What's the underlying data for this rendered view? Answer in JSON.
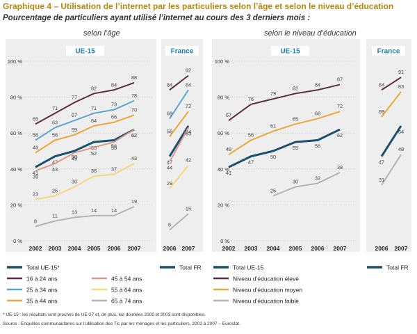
{
  "title": "Graphique 4 – Utilisation de l’internet par les particuliers selon l’âge et selon le niveau d’éducation",
  "subtitle": "Pourcentage de particuliers ayant utilisé l’internet au cours des 3 derniers mois :",
  "panel_left_label": "selon l’âge",
  "panel_right_label": "selon le niveau d’éducation",
  "footnote": "* UE-15 : les résultats sont proches de UE-27 et, de plus, les données 2002 et 2003 sont disponibles.",
  "source": "Source : Enquêtes communautaires sur l’utilisation des Tic par les ménages et les particuliers, 2002 à 2007 – Eurostat.",
  "colors": {
    "total": "#1b4f6e",
    "age_16_24": "#5b2c3b",
    "age_25_34": "#5aa6cf",
    "age_35_44": "#eba83a",
    "age_45_54": "#d89a8c",
    "age_55_64": "#f3d97a",
    "age_65_74": "#b3b3b3",
    "edu_eleve": "#5b2c3b",
    "edu_moyen": "#eba83a",
    "edu_faible": "#b3b3b3",
    "header": "#1a7fb0",
    "title": "#b8860b"
  },
  "chart_data": [
    {
      "type": "line",
      "header": "UE-15",
      "x": [
        "2002",
        "2003",
        "2004",
        "2005",
        "2006",
        "2007"
      ],
      "ylim": [
        0,
        100
      ],
      "yticks": [
        "0 %",
        "20 %",
        "40 %",
        "60 %",
        "80 %",
        "100 %"
      ],
      "series": [
        {
          "key": "age_16_24",
          "values": [
            65,
            71,
            77,
            82,
            84,
            88
          ]
        },
        {
          "key": "age_25_34",
          "values": [
            56,
            63,
            67,
            71,
            73,
            78
          ]
        },
        {
          "key": "age_35_44",
          "values": [
            49,
            56,
            59,
            64,
            66,
            70
          ]
        },
        {
          "key": "total",
          "values": [
            41,
            47,
            50,
            55,
            56,
            62
          ]
        },
        {
          "key": "age_45_54",
          "values": [
            39,
            43,
            49,
            52,
            55,
            62
          ]
        },
        {
          "key": "age_55_64",
          "values": [
            23,
            25,
            30,
            36,
            37,
            43
          ]
        },
        {
          "key": "age_65_74",
          "values": [
            8,
            11,
            13,
            14,
            14,
            19
          ]
        }
      ]
    },
    {
      "type": "line",
      "header": "France",
      "x": [
        "2006",
        "2007"
      ],
      "ylim": [
        0,
        100
      ],
      "series": [
        {
          "key": "age_16_24",
          "values": [
            84,
            92
          ]
        },
        {
          "key": "age_25_34",
          "values": [
            68,
            84
          ]
        },
        {
          "key": "age_35_44",
          "values": [
            58,
            72
          ]
        },
        {
          "key": "total",
          "values": [
            47,
            64
          ]
        },
        {
          "key": "age_45_54",
          "values": [
            44,
            63
          ]
        },
        {
          "key": "age_55_64",
          "values": [
            29,
            42
          ]
        },
        {
          "key": "age_65_74",
          "values": [
            6,
            15
          ]
        }
      ]
    },
    {
      "type": "line",
      "header": "UE-15",
      "x": [
        "2002",
        "2003",
        "2004",
        "2005",
        "2006",
        "2007"
      ],
      "ylim": [
        0,
        100
      ],
      "yticks": [
        "0 %",
        "20 %",
        "40 %",
        "60 %",
        "80 %",
        "100 %"
      ],
      "series": [
        {
          "key": "edu_eleve",
          "values": [
            67,
            76,
            79,
            82,
            84,
            87
          ]
        },
        {
          "key": "edu_moyen",
          "values": [
            48,
            56,
            61,
            65,
            68,
            72
          ]
        },
        {
          "key": "total",
          "values": [
            41,
            47,
            50,
            55,
            56,
            62
          ]
        },
        {
          "key": "edu_faible",
          "values": [
            null,
            null,
            25,
            30,
            32,
            38
          ]
        }
      ]
    },
    {
      "type": "line",
      "header": "France",
      "x": [
        "2006",
        "2007"
      ],
      "ylim": [
        0,
        100
      ],
      "series": [
        {
          "key": "edu_eleve",
          "values": [
            84,
            91
          ]
        },
        {
          "key": "edu_moyen",
          "values": [
            69,
            83
          ]
        },
        {
          "key": "total",
          "values": [
            47,
            64
          ]
        },
        {
          "key": "edu_faible",
          "values": [
            31,
            48
          ]
        }
      ]
    }
  ],
  "legend_left": [
    {
      "key": "total",
      "label": "Total UE-15*"
    },
    {
      "key": "age_45_54",
      "label": "45 à 54 ans"
    },
    {
      "key": "total",
      "label": "Total FR"
    },
    {
      "key": "age_16_24",
      "label": "16 à 24 ans"
    },
    {
      "key": "age_55_64",
      "label": "55 à 64 ans"
    },
    {
      "key": "age_25_34",
      "label": "25 à 34 ans"
    },
    {
      "key": "age_65_74",
      "label": "65 à 74 ans"
    },
    {
      "key": "age_35_44",
      "label": "35 à 44 ans"
    }
  ],
  "legend_right": [
    {
      "key": "total",
      "label": "Total UE-15"
    },
    {
      "key": "total",
      "label": "Total FR"
    },
    {
      "key": "edu_eleve",
      "label": "Niveau d’éducation élevé"
    },
    {
      "key": "edu_moyen",
      "label": "Niveau d’éducation moyen"
    },
    {
      "key": "edu_faible",
      "label": "Niveau d’éducation faible"
    }
  ]
}
